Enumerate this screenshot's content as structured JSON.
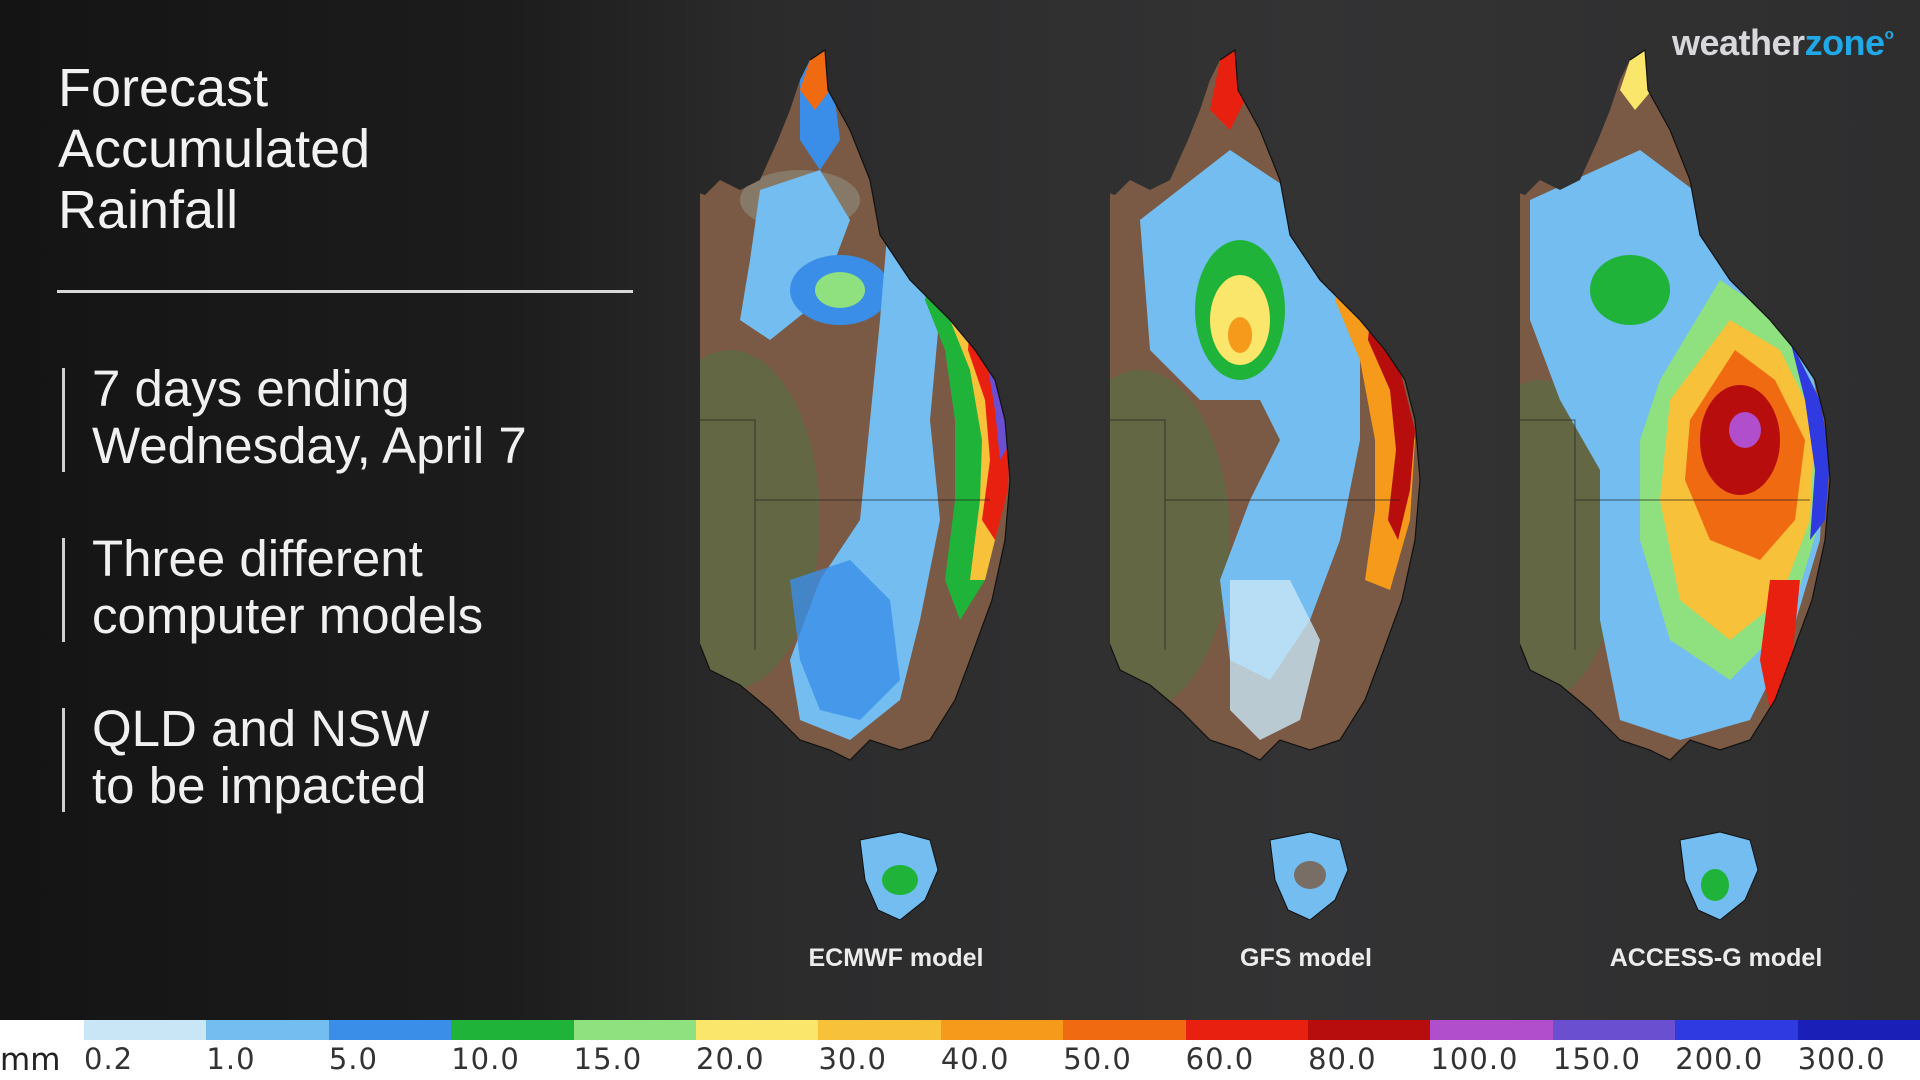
{
  "title": {
    "line1": "Forecast",
    "line2": "Accumulated",
    "line3": "Rainfall"
  },
  "bullets": [
    {
      "line1": "7 days ending",
      "line2": "Wednesday, April 7"
    },
    {
      "line1": "Three different",
      "line2": "computer models"
    },
    {
      "line1": "QLD and NSW",
      "line2": "to be impacted"
    }
  ],
  "logo": {
    "part1": "weather",
    "part2": "zone",
    "mark": "o"
  },
  "maps": [
    {
      "label": "ECMWF model"
    },
    {
      "label": "GFS model"
    },
    {
      "label": "ACCESS-G model"
    }
  ],
  "legend": {
    "unit": "mm",
    "ticks": [
      "0.2",
      "1.0",
      "5.0",
      "10.0",
      "15.0",
      "20.0",
      "30.0",
      "40.0",
      "50.0",
      "60.0",
      "80.0",
      "100.0",
      "150.0",
      "200.0",
      "300.0"
    ],
    "colors": [
      "#c9e6f7",
      "#73bdf0",
      "#3a8ee8",
      "#1fb33a",
      "#8fe07f",
      "#f9e66a",
      "#f7c13a",
      "#f59a1a",
      "#f06a12",
      "#e82010",
      "#b80d0d",
      "#b04ecb",
      "#6a4fd1",
      "#2f3be0",
      "#1a1fb8"
    ]
  },
  "colors": {
    "land": "#7a5a44",
    "land_green": "#5e6a45",
    "accent": "#1fa9e6"
  }
}
